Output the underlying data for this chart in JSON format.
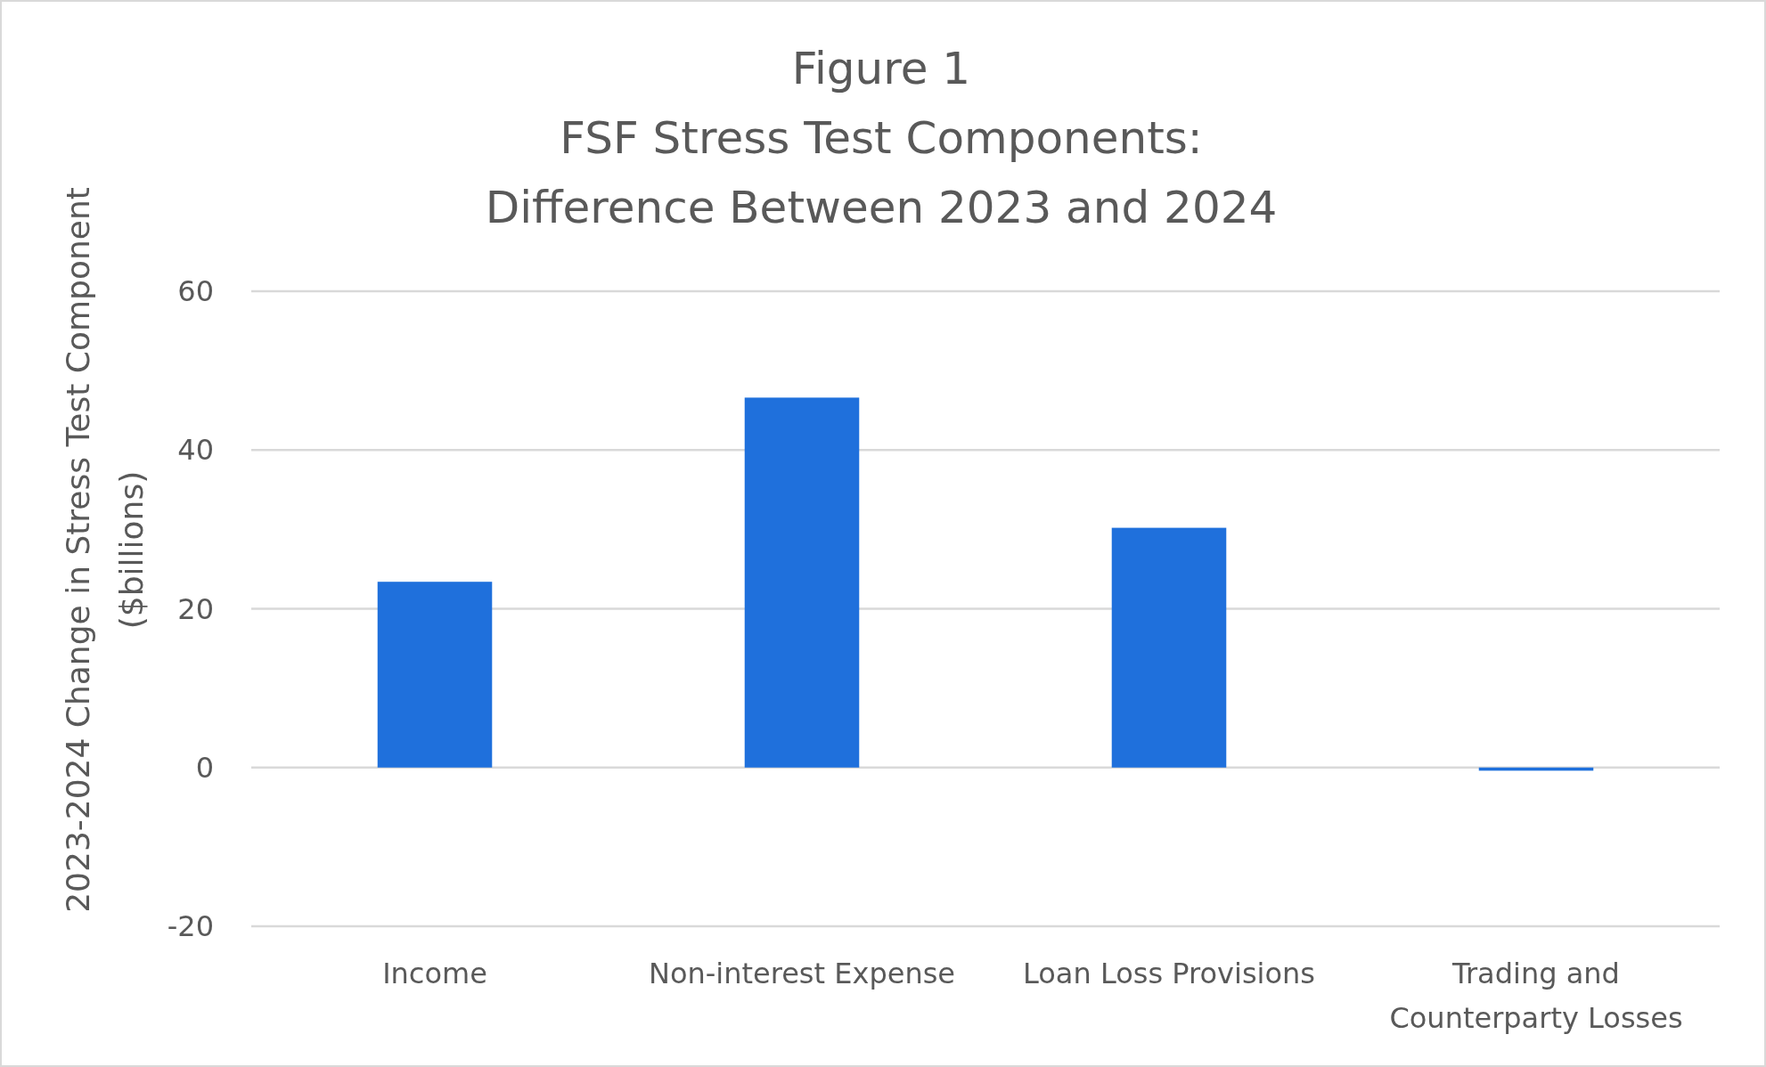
{
  "chart_data": {
    "type": "bar",
    "title": "Figure 1\nFSF Stress Test Components:\nDifference Between 2023 and 2024",
    "ylabel": "2023-2024 Change in Stress Test Component\n($billions)",
    "categories": [
      "Income",
      "Non-interest Expense",
      "Loan Loss Provisions",
      "Trading and\nCounterparty Losses"
    ],
    "values": [
      23.4,
      46.6,
      30.2,
      -0.4
    ],
    "color": "#1f70dc",
    "ylim": [
      -20,
      60
    ],
    "yticks": [
      -20,
      0,
      20,
      40,
      60
    ],
    "grid": "y"
  }
}
